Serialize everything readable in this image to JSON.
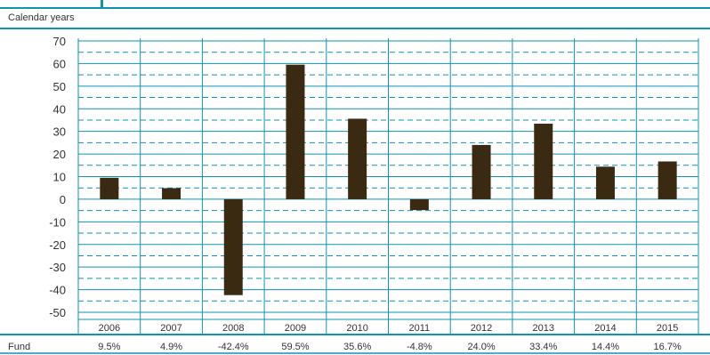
{
  "header": {
    "subtitle": "Calendar years"
  },
  "colors": {
    "accent": "#0f93b4",
    "bar": "#3a2a12"
  },
  "chart_data": {
    "type": "bar",
    "title": "",
    "xlabel": "",
    "ylabel": "",
    "ylim": [
      -50,
      70
    ],
    "yticks": [
      70,
      60,
      50,
      40,
      30,
      20,
      10,
      0,
      -10,
      -20,
      -30,
      -40,
      -50
    ],
    "grid": true,
    "categories": [
      "2006",
      "2007",
      "2008",
      "2009",
      "2010",
      "2011",
      "2012",
      "2013",
      "2014",
      "2015"
    ],
    "series": [
      {
        "name": "Fund",
        "values": [
          9.5,
          4.9,
          -42.4,
          59.5,
          35.6,
          -4.8,
          24.0,
          33.4,
          14.4,
          16.7
        ]
      }
    ],
    "table": {
      "row_label": "Fund",
      "values": [
        "9.5%",
        "4.9%",
        "-42.4%",
        "59.5%",
        "35.6%",
        "-4.8%",
        "24.0%",
        "33.4%",
        "14.4%",
        "16.7%"
      ]
    }
  }
}
